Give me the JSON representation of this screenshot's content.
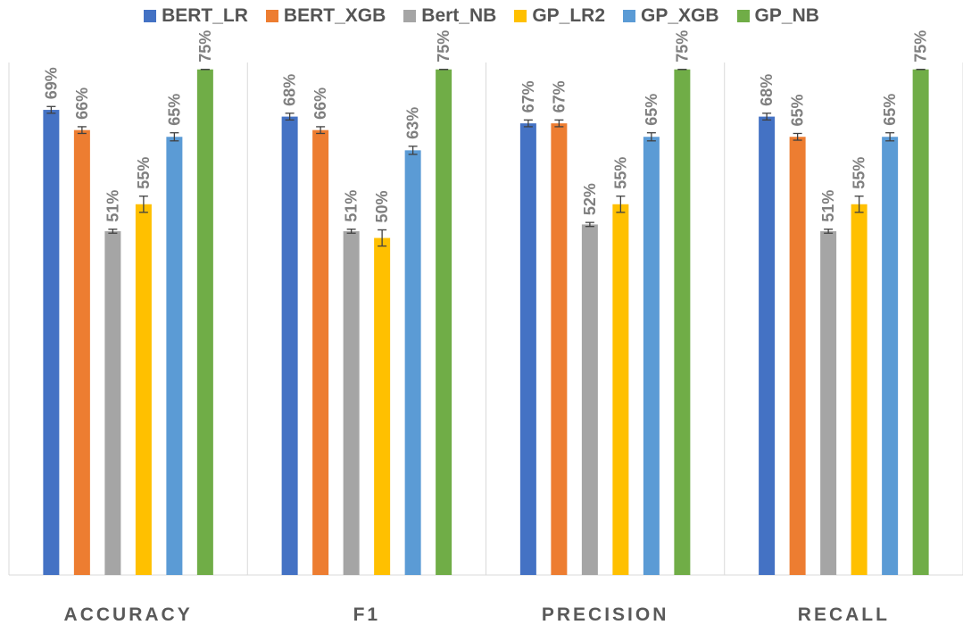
{
  "chart_data": {
    "type": "bar",
    "categories": [
      "ACCURACY",
      "F1",
      "PRECISION",
      "RECALL"
    ],
    "series": [
      {
        "name": "BERT_LR",
        "color": "#4472C4",
        "values": [
          0.69,
          0.68,
          0.67,
          0.68
        ],
        "labels": [
          "69%",
          "68%",
          "67%",
          "68%"
        ],
        "errors": [
          0.005,
          0.005,
          0.005,
          0.005
        ]
      },
      {
        "name": "BERT_XGB",
        "color": "#ED7D31",
        "values": [
          0.66,
          0.66,
          0.67,
          0.65
        ],
        "labels": [
          "66%",
          "66%",
          "67%",
          "65%"
        ],
        "errors": [
          0.005,
          0.005,
          0.005,
          0.005
        ]
      },
      {
        "name": "Bert_NB",
        "color": "#A5A5A5",
        "values": [
          0.51,
          0.51,
          0.52,
          0.51
        ],
        "labels": [
          "51%",
          "51%",
          "52%",
          "51%"
        ],
        "errors": [
          0.003,
          0.003,
          0.003,
          0.003
        ]
      },
      {
        "name": "GP_LR2",
        "color": "#FFC000",
        "values": [
          0.55,
          0.5,
          0.55,
          0.55
        ],
        "labels": [
          "55%",
          "50%",
          "55%",
          "55%"
        ],
        "errors": [
          0.012,
          0.012,
          0.012,
          0.012
        ]
      },
      {
        "name": "GP_XGB",
        "color": "#5B9BD5",
        "values": [
          0.65,
          0.63,
          0.65,
          0.65
        ],
        "labels": [
          "65%",
          "63%",
          "65%",
          "65%"
        ],
        "errors": [
          0.006,
          0.006,
          0.006,
          0.006
        ]
      },
      {
        "name": "GP_NB",
        "color": "#70AD47",
        "values": [
          0.75,
          0.75,
          0.75,
          0.75
        ],
        "labels": [
          "75%",
          "75%",
          "75%",
          "75%"
        ],
        "errors": [
          0.0,
          0.0,
          0.0,
          0.0
        ]
      }
    ],
    "ylim": [
      0,
      0.8
    ],
    "grid": false,
    "error_bars": true,
    "legend_position": "top"
  }
}
